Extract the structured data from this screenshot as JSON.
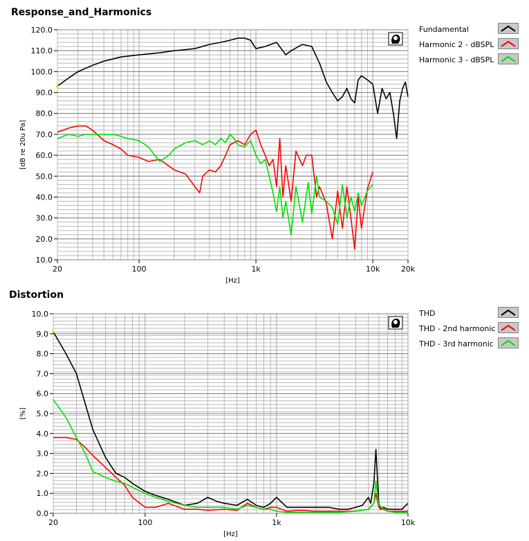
{
  "chart_data": [
    {
      "type": "line",
      "title": "Response_and_Harmonics",
      "xlabel": "[Hz]",
      "ylabel": "[dB re 20u Pa]",
      "xscale": "log",
      "xlim": [
        20,
        20000
      ],
      "ylim": [
        10,
        120
      ],
      "xticks": [
        20,
        100,
        1000,
        10000,
        20000
      ],
      "xtick_labels": [
        "20",
        "100",
        "1k",
        "10k",
        "20k"
      ],
      "yticks": [
        10,
        20,
        30,
        40,
        50,
        60,
        70,
        80,
        90,
        100,
        110,
        120
      ],
      "ytick_labels": [
        "10.0",
        "20.0",
        "30.0",
        "40.0",
        "50.0",
        "60.0",
        "70.0",
        "80.0",
        "90.0",
        "100.0",
        "110.0",
        "120.0"
      ],
      "grid": true,
      "legend_position": "right",
      "series": [
        {
          "name": "Fundamental",
          "color": "#000000",
          "x": [
            20,
            25,
            30,
            40,
            50,
            70,
            100,
            150,
            200,
            300,
            400,
            500,
            600,
            700,
            800,
            900,
            1000,
            1200,
            1500,
            1800,
            2000,
            2500,
            3000,
            3500,
            4000,
            4500,
            5000,
            5500,
            6000,
            6500,
            7000,
            7500,
            8000,
            8500,
            9000,
            10000,
            11000,
            12000,
            13000,
            14000,
            15000,
            16000,
            17000,
            18000,
            19000,
            20000
          ],
          "y": [
            93,
            97,
            100,
            103,
            105,
            107,
            108,
            109,
            110,
            111,
            113,
            114,
            115,
            116,
            116,
            115,
            111,
            112,
            114,
            108,
            110,
            113,
            112,
            104,
            95,
            90,
            86,
            88,
            92,
            87,
            85,
            96,
            98,
            97,
            96,
            94,
            80,
            92,
            87,
            90,
            80,
            68,
            86,
            92,
            95,
            88
          ]
        },
        {
          "name": "Harmonic 2 - dBSPL",
          "color": "#ff0000",
          "x": [
            20,
            25,
            30,
            35,
            40,
            50,
            60,
            70,
            80,
            100,
            120,
            150,
            200,
            250,
            300,
            330,
            350,
            400,
            450,
            500,
            550,
            600,
            700,
            800,
            900,
            1000,
            1100,
            1200,
            1300,
            1400,
            1500,
            1600,
            1700,
            1800,
            2000,
            2200,
            2500,
            2700,
            3000,
            3300,
            3500,
            4000,
            4500,
            5000,
            5500,
            6000,
            6500,
            7000,
            7500,
            8000,
            9000,
            10000
          ],
          "y": [
            71,
            73,
            74,
            74,
            72,
            67,
            65,
            63,
            60,
            59,
            57,
            58,
            53,
            51,
            45,
            42,
            50,
            53,
            52,
            55,
            60,
            65,
            67,
            65,
            70,
            72,
            65,
            60,
            55,
            58,
            45,
            68,
            40,
            55,
            38,
            62,
            55,
            60,
            60,
            40,
            45,
            37,
            20,
            43,
            25,
            45,
            30,
            15,
            40,
            25,
            44,
            52
          ]
        },
        {
          "name": "Harmonic 3 - dBSPL",
          "color": "#00e000",
          "x": [
            20,
            25,
            30,
            35,
            40,
            50,
            60,
            70,
            80,
            100,
            120,
            150,
            180,
            200,
            250,
            300,
            350,
            400,
            450,
            500,
            550,
            600,
            650,
            700,
            800,
            900,
            1000,
            1100,
            1200,
            1300,
            1400,
            1500,
            1600,
            1700,
            1800,
            2000,
            2200,
            2500,
            2800,
            3000,
            3300,
            3500,
            4000,
            4500,
            5000,
            5500,
            6000,
            6500,
            7000,
            7500,
            8000,
            9000,
            10000
          ],
          "y": [
            68,
            70,
            69,
            70,
            70,
            70,
            70,
            69,
            68,
            67,
            64,
            57,
            60,
            63,
            66,
            67,
            65,
            67,
            65,
            68,
            66,
            70,
            68,
            65,
            64,
            67,
            60,
            56,
            58,
            50,
            42,
            33,
            45,
            30,
            38,
            22,
            45,
            28,
            47,
            32,
            50,
            40,
            38,
            35,
            27,
            46,
            30,
            40,
            33,
            42,
            36,
            43,
            46
          ]
        }
      ]
    },
    {
      "type": "line",
      "title": "Distortion",
      "xlabel": "[Hz]",
      "ylabel": "[%]",
      "xscale": "log",
      "xlim": [
        20,
        10000
      ],
      "ylim": [
        0,
        10
      ],
      "xticks": [
        20,
        100,
        1000,
        10000
      ],
      "xtick_labels": [
        "20",
        "100",
        "1k",
        "10k"
      ],
      "yticks": [
        0,
        1,
        2,
        3,
        4,
        5,
        6,
        7,
        8,
        9,
        10
      ],
      "ytick_labels": [
        "0.0",
        "1.0",
        "2.0",
        "3.0",
        "4.0",
        "5.0",
        "6.0",
        "7.0",
        "8.0",
        "9.0",
        "10.0"
      ],
      "grid": true,
      "legend_position": "right",
      "series": [
        {
          "name": "THD",
          "color": "#000000",
          "x": [
            20,
            25,
            30,
            35,
            40,
            50,
            60,
            70,
            80,
            100,
            120,
            150,
            200,
            250,
            300,
            350,
            400,
            500,
            600,
            700,
            800,
            900,
            1000,
            1200,
            1500,
            2000,
            2500,
            3000,
            3500,
            4000,
            4500,
            5000,
            5200,
            5500,
            5700,
            6000,
            6200,
            6500,
            7000,
            8000,
            9000,
            10000
          ],
          "y": [
            9.1,
            8.0,
            7.0,
            5.5,
            4.2,
            2.8,
            2.0,
            1.8,
            1.5,
            1.1,
            0.9,
            0.7,
            0.4,
            0.5,
            0.8,
            0.6,
            0.5,
            0.4,
            0.7,
            0.4,
            0.3,
            0.5,
            0.8,
            0.3,
            0.3,
            0.3,
            0.3,
            0.2,
            0.2,
            0.3,
            0.4,
            0.8,
            0.5,
            1.5,
            3.2,
            0.5,
            0.2,
            0.3,
            0.2,
            0.2,
            0.2,
            0.5
          ]
        },
        {
          "name": "THD - 2nd harmonic",
          "color": "#ff0000",
          "x": [
            20,
            25,
            30,
            35,
            40,
            50,
            60,
            70,
            80,
            100,
            120,
            150,
            200,
            250,
            300,
            400,
            500,
            600,
            700,
            800,
            900,
            1000,
            1200,
            1500,
            2000,
            3000,
            4000,
            5000,
            5500,
            5700,
            6000,
            7000,
            8000,
            10000
          ],
          "y": [
            3.8,
            3.8,
            3.7,
            3.3,
            2.9,
            2.3,
            1.8,
            1.4,
            0.8,
            0.3,
            0.3,
            0.5,
            0.2,
            0.2,
            0.15,
            0.2,
            0.15,
            0.5,
            0.3,
            0.2,
            0.3,
            0.3,
            0.1,
            0.15,
            0.1,
            0.1,
            0.1,
            0.2,
            0.5,
            1.0,
            0.3,
            0.1,
            0.1,
            0.1
          ]
        },
        {
          "name": "THD - 3rd harmonic",
          "color": "#00e000",
          "x": [
            20,
            25,
            30,
            35,
            40,
            50,
            60,
            70,
            80,
            100,
            120,
            150,
            200,
            250,
            300,
            400,
            500,
            600,
            700,
            800,
            900,
            1000,
            1200,
            1500,
            2000,
            3000,
            4000,
            5000,
            5500,
            5700,
            6000,
            7000,
            8000,
            10000
          ],
          "y": [
            5.7,
            4.8,
            3.8,
            3.0,
            2.1,
            1.8,
            1.6,
            1.5,
            1.3,
            1.0,
            0.8,
            0.6,
            0.4,
            0.3,
            0.3,
            0.3,
            0.2,
            0.4,
            0.3,
            0.2,
            0.2,
            0.1,
            0.05,
            0.05,
            0.05,
            0.05,
            0.1,
            0.2,
            0.5,
            1.6,
            0.4,
            0.1,
            0.05,
            0.05
          ]
        }
      ]
    }
  ]
}
